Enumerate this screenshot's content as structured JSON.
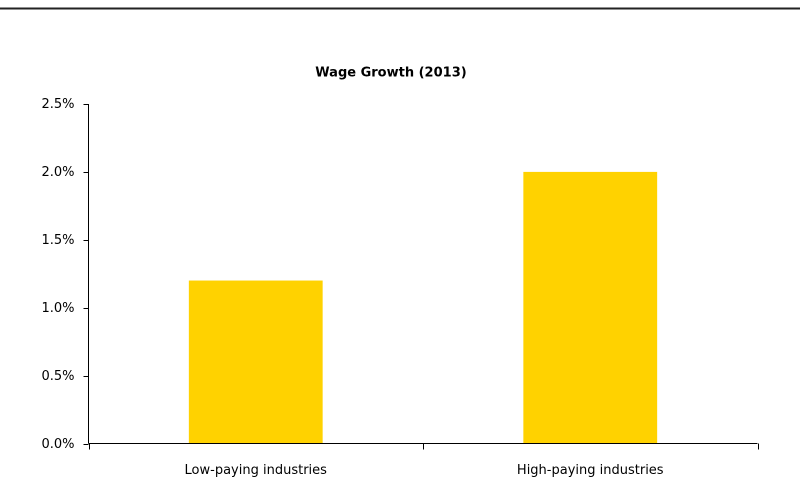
{
  "chart_data": {
    "type": "bar",
    "title": "Wage Growth (2013)",
    "categories": [
      "Low-paying industries",
      "High-paying industries"
    ],
    "values": [
      1.2,
      2.0
    ],
    "color": "#ffd200",
    "ylim": [
      0,
      2.5
    ],
    "yticks": [
      {
        "value": 0,
        "label": "0.0%"
      },
      {
        "value": 0.5,
        "label": "0.5%"
      },
      {
        "value": 1.0,
        "label": "1.0%"
      },
      {
        "value": 1.5,
        "label": "1.5%"
      },
      {
        "value": 2.0,
        "label": "2.0%"
      },
      {
        "value": 2.5,
        "label": "2.5%"
      }
    ],
    "grid": false
  }
}
